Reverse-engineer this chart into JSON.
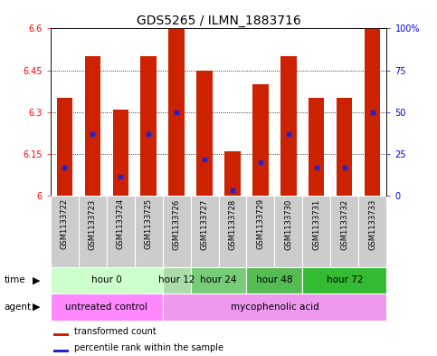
{
  "title": "GDS5265 / ILMN_1883716",
  "samples": [
    "GSM1133722",
    "GSM1133723",
    "GSM1133724",
    "GSM1133725",
    "GSM1133726",
    "GSM1133727",
    "GSM1133728",
    "GSM1133729",
    "GSM1133730",
    "GSM1133731",
    "GSM1133732",
    "GSM1133733"
  ],
  "bar_values": [
    6.35,
    6.5,
    6.31,
    6.5,
    6.6,
    6.45,
    6.16,
    6.4,
    6.5,
    6.35,
    6.35,
    6.6
  ],
  "blue_dot_values": [
    6.1,
    6.22,
    6.07,
    6.22,
    6.3,
    6.13,
    6.02,
    6.12,
    6.22,
    6.1,
    6.1,
    6.3
  ],
  "bar_bottom": 6.0,
  "ylim_left": [
    6.0,
    6.6
  ],
  "ylim_right": [
    0,
    100
  ],
  "yticks_left": [
    6.0,
    6.15,
    6.3,
    6.45,
    6.6
  ],
  "yticks_right": [
    0,
    25,
    50,
    75,
    100
  ],
  "ytick_labels_left": [
    "6",
    "6.15",
    "6.3",
    "6.45",
    "6.6"
  ],
  "ytick_labels_right": [
    "0",
    "25",
    "50",
    "75",
    "100%"
  ],
  "bar_color": "#cc2200",
  "dot_color": "#2222cc",
  "grid_color": "#000000",
  "bg_color": "#ffffff",
  "plot_bg": "#ffffff",
  "sample_bg": "#cccccc",
  "time_groups": [
    {
      "label": "hour 0",
      "start": 0,
      "end": 4,
      "color": "#ccffcc"
    },
    {
      "label": "hour 12",
      "start": 4,
      "end": 5,
      "color": "#aaddaa"
    },
    {
      "label": "hour 24",
      "start": 5,
      "end": 7,
      "color": "#77cc77"
    },
    {
      "label": "hour 48",
      "start": 7,
      "end": 9,
      "color": "#55bb55"
    },
    {
      "label": "hour 72",
      "start": 9,
      "end": 12,
      "color": "#33bb33"
    }
  ],
  "agent_groups": [
    {
      "label": "untreated control",
      "start": 0,
      "end": 4,
      "color": "#ff88ff"
    },
    {
      "label": "mycophenolic acid",
      "start": 4,
      "end": 12,
      "color": "#ee99ee"
    }
  ],
  "legend_items": [
    {
      "label": "transformed count",
      "color": "#cc2200"
    },
    {
      "label": "percentile rank within the sample",
      "color": "#2222cc"
    }
  ],
  "title_fontsize": 10,
  "tick_fontsize": 7,
  "sample_fontsize": 6,
  "row_fontsize": 7.5,
  "legend_fontsize": 7
}
